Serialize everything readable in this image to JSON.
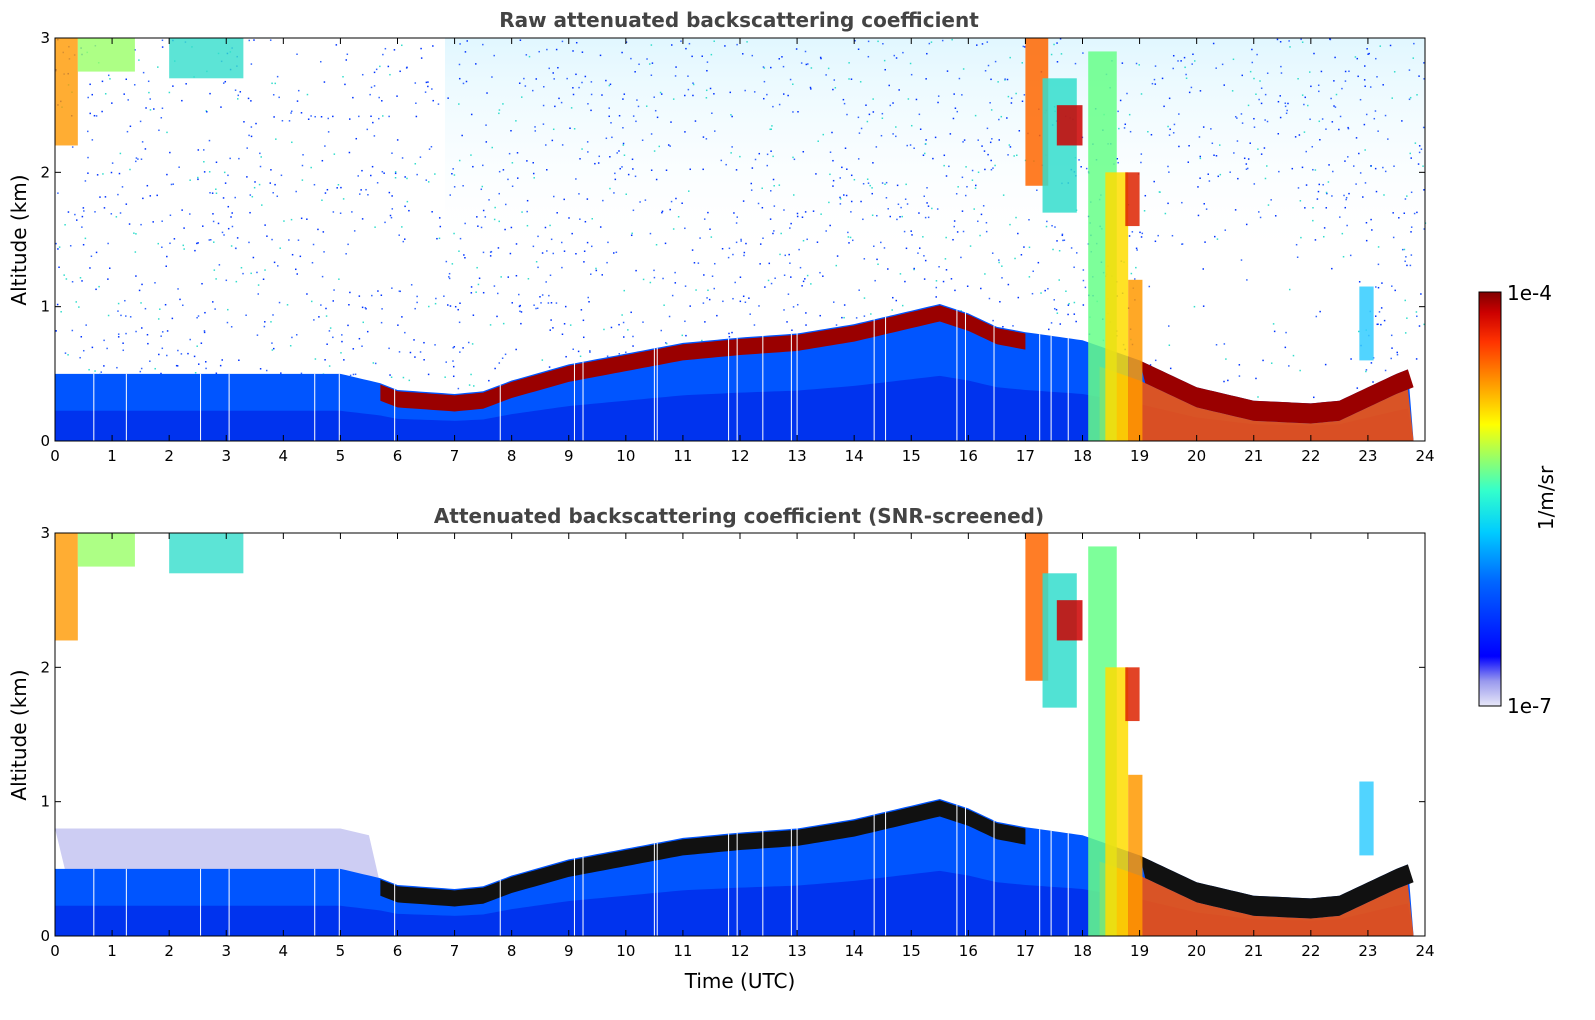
{
  "chart_data": [
    {
      "type": "heatmap",
      "title": "Raw attenuated backscattering coefficient",
      "xlabel": "",
      "ylabel": "Altitude (km)",
      "xlim": [
        0,
        24
      ],
      "ylim": [
        0,
        3
      ],
      "x_ticks": [
        "0",
        "1",
        "2",
        "3",
        "4",
        "5",
        "6",
        "7",
        "8",
        "9",
        "10",
        "11",
        "12",
        "13",
        "14",
        "15",
        "16",
        "17",
        "18",
        "19",
        "20",
        "21",
        "22",
        "23",
        "24"
      ],
      "y_ticks": [
        "0",
        "1",
        "2",
        "3"
      ],
      "colorscale": "jet",
      "screened": false,
      "layer_height_km": [
        [
          0,
          0.45
        ],
        [
          1,
          0.45
        ],
        [
          2,
          0.45
        ],
        [
          3,
          0.45
        ],
        [
          4,
          0.45
        ],
        [
          5,
          0.45
        ],
        [
          5.7,
          0.38
        ],
        [
          6,
          0.33
        ],
        [
          7,
          0.3
        ],
        [
          7.5,
          0.32
        ],
        [
          8,
          0.4
        ],
        [
          9,
          0.52
        ],
        [
          10,
          0.6
        ],
        [
          11,
          0.68
        ],
        [
          12,
          0.72
        ],
        [
          13,
          0.75
        ],
        [
          14,
          0.82
        ],
        [
          15,
          0.92
        ],
        [
          15.5,
          0.97
        ],
        [
          16,
          0.9
        ],
        [
          16.5,
          0.8
        ],
        [
          17,
          0.76
        ],
        [
          18,
          0.7
        ],
        [
          19,
          0.55
        ],
        [
          20,
          0.35
        ],
        [
          21,
          0.25
        ],
        [
          22,
          0.23
        ],
        [
          22.5,
          0.25
        ],
        [
          23,
          0.35
        ],
        [
          23.5,
          0.45
        ],
        [
          23.8,
          0.5
        ]
      ],
      "annotation_vertical_gaps_utc": [
        0.68,
        1.25,
        2.55,
        3.05,
        4.55,
        4.98,
        5.95,
        7.8,
        9.1,
        9.25,
        10.5,
        10.55,
        11.8,
        11.95,
        12.4,
        12.9,
        13.0,
        14.35,
        14.55,
        15.8,
        15.95,
        16.45,
        17.25,
        17.45,
        17.75
      ]
    },
    {
      "type": "heatmap",
      "title": "Attenuated backscattering coefficient (SNR-screened)",
      "xlabel": "Time (UTC)",
      "ylabel": "Altitude (km)",
      "xlim": [
        0,
        24
      ],
      "ylim": [
        0,
        3
      ],
      "x_ticks": [
        "0",
        "1",
        "2",
        "3",
        "4",
        "5",
        "6",
        "7",
        "8",
        "9",
        "10",
        "11",
        "12",
        "13",
        "14",
        "15",
        "16",
        "17",
        "18",
        "19",
        "20",
        "21",
        "22",
        "23",
        "24"
      ],
      "y_ticks": [
        "0",
        "1",
        "2",
        "3"
      ],
      "colorscale": "jet",
      "screened": true,
      "layer_height_km": [
        [
          0,
          0.45
        ],
        [
          1,
          0.45
        ],
        [
          2,
          0.45
        ],
        [
          3,
          0.45
        ],
        [
          4,
          0.45
        ],
        [
          5,
          0.45
        ],
        [
          5.7,
          0.38
        ],
        [
          6,
          0.33
        ],
        [
          7,
          0.3
        ],
        [
          7.5,
          0.32
        ],
        [
          8,
          0.4
        ],
        [
          9,
          0.52
        ],
        [
          10,
          0.6
        ],
        [
          11,
          0.68
        ],
        [
          12,
          0.72
        ],
        [
          13,
          0.75
        ],
        [
          14,
          0.82
        ],
        [
          15,
          0.92
        ],
        [
          15.5,
          0.97
        ],
        [
          16,
          0.9
        ],
        [
          16.5,
          0.8
        ],
        [
          17,
          0.76
        ],
        [
          18,
          0.7
        ],
        [
          19,
          0.55
        ],
        [
          20,
          0.35
        ],
        [
          21,
          0.25
        ],
        [
          22,
          0.23
        ],
        [
          22.5,
          0.25
        ],
        [
          23,
          0.35
        ],
        [
          23.5,
          0.45
        ],
        [
          23.8,
          0.5
        ]
      ]
    }
  ],
  "colorbar": {
    "max_label": "1e-4",
    "min_label": "1e-7",
    "label": "1/m/sr",
    "colors": [
      "#e8e8f8",
      "#9999ee",
      "#0000ff",
      "#0066ff",
      "#00ccff",
      "#33ffcc",
      "#99ff66",
      "#ffff00",
      "#ff9900",
      "#ff3300",
      "#cc0000",
      "#800000"
    ]
  }
}
